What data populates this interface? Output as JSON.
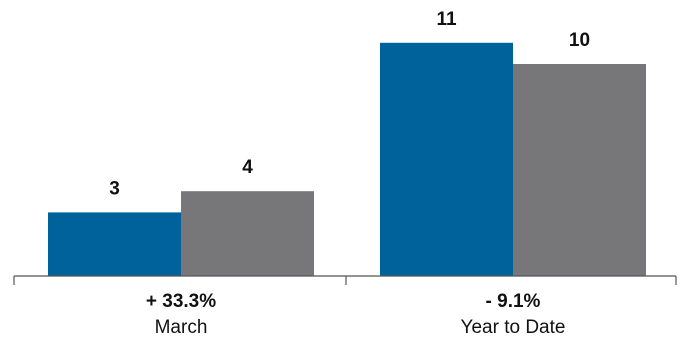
{
  "colors": {
    "series_1": "#00629b",
    "series_2": "#77777a",
    "axis": "#555555"
  },
  "chart_data": {
    "type": "bar",
    "categories": [
      "March",
      "Year to Date"
    ],
    "category_changes": [
      "+ 33.3%",
      "- 9.1%"
    ],
    "series": [
      {
        "values": [
          3,
          11
        ]
      },
      {
        "values": [
          4,
          10
        ]
      }
    ],
    "ylim": [
      0,
      12
    ],
    "grid": false,
    "legend": "none"
  }
}
